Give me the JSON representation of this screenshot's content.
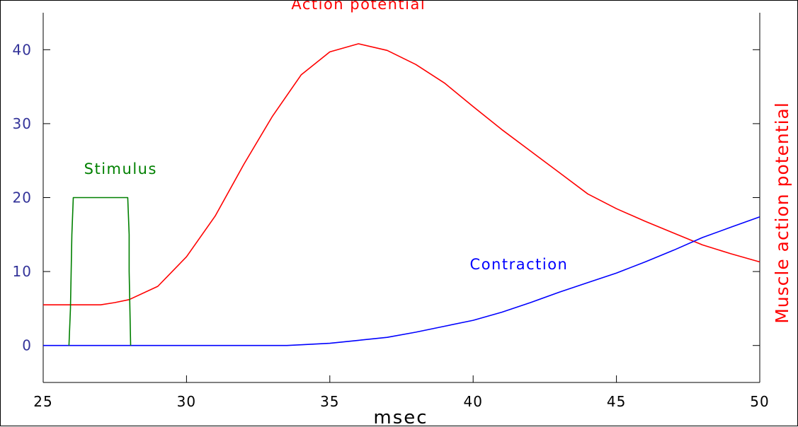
{
  "chart_data": {
    "type": "line",
    "xlabel": "msec",
    "ylabel_right": "Muscle action potential",
    "xlim": [
      25,
      50
    ],
    "ylim": [
      -5,
      45
    ],
    "x_ticks": [
      25,
      30,
      35,
      40,
      45,
      50
    ],
    "y_ticks": [
      0,
      10,
      20,
      30,
      40
    ],
    "grid": false,
    "colors": {
      "axis": "#000000",
      "y_tick_labels": "#333399",
      "x_tick_labels": "#000000",
      "ylabel_right": "#ff0000"
    },
    "series": [
      {
        "name": "Action potential",
        "color": "#ff0000",
        "x": [
          25,
          26,
          27,
          27.5,
          28,
          29,
          30,
          31,
          32,
          33,
          34,
          35,
          36,
          37,
          38,
          39,
          40,
          41,
          42,
          43,
          44,
          45,
          46,
          47,
          48,
          49,
          50
        ],
        "y": [
          5.5,
          5.5,
          5.5,
          5.8,
          6.2,
          8,
          12,
          17.5,
          24.5,
          31,
          36.6,
          39.7,
          40.8,
          39.9,
          38,
          35.5,
          32.3,
          29.2,
          26.3,
          23.4,
          20.5,
          18.5,
          16.8,
          15.2,
          13.6,
          12.4,
          11.3
        ]
      },
      {
        "name": "Contraction",
        "color": "#0000ff",
        "x": [
          25,
          26,
          28,
          30,
          32,
          33.5,
          34,
          35,
          36,
          37,
          38,
          39,
          40,
          41,
          42,
          43,
          44,
          45,
          46,
          47,
          48,
          49,
          50
        ],
        "y": [
          0,
          0,
          0,
          0,
          0,
          0,
          0.1,
          0.3,
          0.7,
          1.1,
          1.8,
          2.6,
          3.4,
          4.5,
          5.8,
          7.2,
          8.5,
          9.8,
          11.3,
          12.9,
          14.6,
          16,
          17.4
        ]
      },
      {
        "name": "Stimulus",
        "color": "#008000",
        "x": [
          25.9,
          25.95,
          26.0,
          26.0,
          26.05,
          27.95,
          28.0,
          28.0,
          28.05
        ],
        "y": [
          0,
          5,
          15,
          15,
          20,
          20,
          15,
          10,
          0
        ]
      }
    ],
    "annotations": [
      {
        "text": "Action potential",
        "color": "#ff0000",
        "x": 36,
        "y": 45.5
      },
      {
        "text": "Stimulus",
        "color": "#008000",
        "x": 27.7,
        "y": 23.2
      },
      {
        "text": "Contraction",
        "color": "#0000ff",
        "x": 41.6,
        "y": 10.3
      }
    ]
  }
}
